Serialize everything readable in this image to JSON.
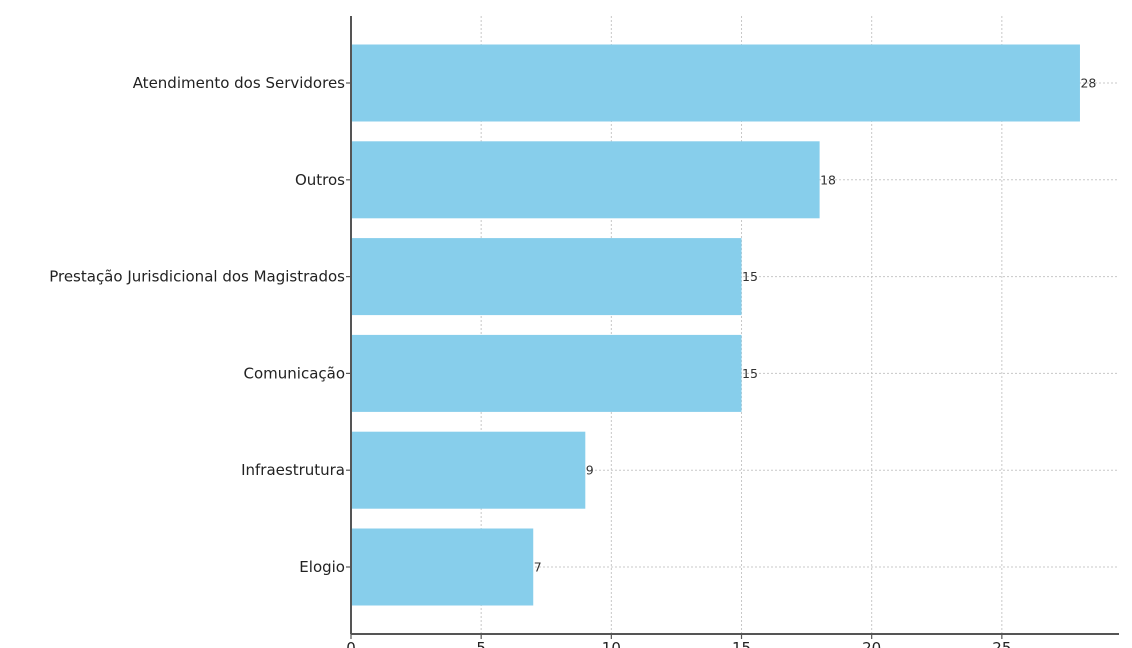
{
  "chart_data": {
    "type": "bar",
    "orientation": "horizontal",
    "categories": [
      "Atendimento dos Servidores",
      "Outros",
      "Prestação Jurisdicional dos Magistrados",
      "Comunicação",
      "Infraestrutura",
      "Elogio"
    ],
    "values": [
      28,
      18,
      15,
      15,
      9,
      7
    ],
    "data_labels": [
      "28",
      "18",
      "15",
      "15",
      "9",
      "7"
    ],
    "title": "",
    "xlabel": "",
    "ylabel": "",
    "xlim": [
      0,
      29.5
    ],
    "x_ticks": [
      0,
      5,
      10,
      15,
      20,
      25
    ],
    "x_tick_labels": [
      "0",
      "5",
      "10",
      "15",
      "20",
      "25"
    ],
    "grid": true,
    "bar_color": "#87ceeb"
  }
}
